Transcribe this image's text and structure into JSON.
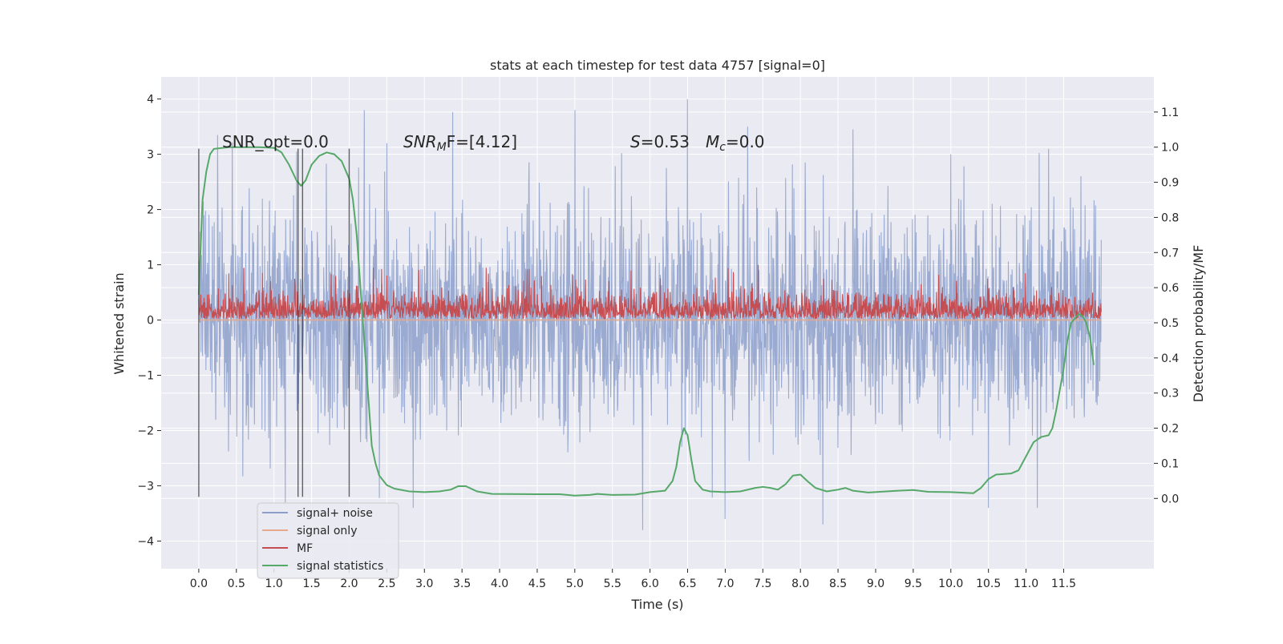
{
  "chart_data": {
    "type": "line",
    "title": "stats at each timestep for test data 4757 [signal=0]",
    "xlabel": "Time (s)",
    "ylabel_left": "Whitened strain",
    "ylabel_right": "Detection probability/MF",
    "xlim": [
      -0.5,
      12.7
    ],
    "ylim_left": [
      -4.5,
      4.4
    ],
    "ylim_right": [
      -0.2,
      1.2
    ],
    "x_ticks": [
      "0.0",
      "0.5",
      "1.0",
      "1.5",
      "2.0",
      "2.5",
      "3.0",
      "3.5",
      "4.0",
      "4.5",
      "5.0",
      "5.5",
      "6.0",
      "6.5",
      "7.0",
      "7.5",
      "8.0",
      "8.5",
      "9.0",
      "9.5",
      "10.0",
      "10.5",
      "11.0",
      "11.5"
    ],
    "y_ticks_left": [
      4,
      3,
      2,
      1,
      0,
      -1,
      -2,
      -3,
      -4
    ],
    "y_tick_labels_left": [
      "4",
      "3",
      "2",
      "1",
      "0",
      "−1",
      "−2",
      "−3",
      "−4"
    ],
    "y_ticks_right": [
      1.1,
      1.0,
      0.9,
      0.8,
      0.7,
      0.6,
      0.5,
      0.4,
      0.3,
      0.2,
      0.1,
      0.0
    ],
    "y_tick_labels_right": [
      "1.1",
      "1.0",
      "0.9",
      "0.8",
      "0.7",
      "0.6",
      "0.5",
      "0.4",
      "0.3",
      "0.2",
      "0.1",
      "0.0"
    ],
    "grid": true,
    "annotations": {
      "snr_opt": "SNR_opt=0.0",
      "snr_mf_prefix": "SNR",
      "snr_mf_sub": "M",
      "snr_mf_rest": "F=[4.12]",
      "s_var": "S",
      "s_rest": "=0.53",
      "mc_var": "M",
      "mc_sub": "c",
      "mc_rest": "=0.0"
    },
    "vertical_lines_x": [
      0.0,
      1.32,
      1.38,
      2.0
    ],
    "vertical_lines_range": [
      -3.2,
      3.1
    ],
    "legend": {
      "placement": "lower-left",
      "entries": [
        {
          "label": "signal+ noise",
          "color": "#8c9fca"
        },
        {
          "label": "signal only",
          "color": "#e6a98c"
        },
        {
          "label": "MF",
          "color": "#c44e52"
        },
        {
          "label": "signal statistics",
          "color": "#55a868"
        }
      ]
    },
    "series": [
      {
        "name": "signal+ noise",
        "axis": "left",
        "color": "#8c9fca",
        "x_range": [
          0.0,
          12.0
        ],
        "envelope_typical": [
          -2.0,
          2.0
        ],
        "extremes": [
          {
            "x": 0.25,
            "y": 3.35
          },
          {
            "x": 1.3,
            "y": 3.05
          },
          {
            "x": 2.2,
            "y": 3.8
          },
          {
            "x": 2.5,
            "y": 3.2
          },
          {
            "x": 5.0,
            "y": 3.8
          },
          {
            "x": 6.5,
            "y": 4.0
          },
          {
            "x": 7.3,
            "y": 3.5
          },
          {
            "x": 8.7,
            "y": 3.45
          },
          {
            "x": 10.0,
            "y": 3.0
          },
          {
            "x": 11.3,
            "y": 3.1
          },
          {
            "x": 5.9,
            "y": -3.8
          },
          {
            "x": 1.15,
            "y": -3.3
          },
          {
            "x": 2.85,
            "y": -3.4
          },
          {
            "x": 7.0,
            "y": -3.6
          },
          {
            "x": 8.3,
            "y": -3.7
          },
          {
            "x": 10.5,
            "y": -3.4
          },
          {
            "x": 11.15,
            "y": -3.4
          }
        ]
      },
      {
        "name": "signal only",
        "axis": "left",
        "color": "#e6a98c",
        "x_range": [
          0.0,
          12.0
        ],
        "value": 0.0
      },
      {
        "name": "MF",
        "axis": "left",
        "color": "#c44e52",
        "x_range": [
          0.0,
          12.0
        ],
        "envelope_typical": [
          0.0,
          0.7
        ],
        "max": 1.0
      },
      {
        "name": "signal statistics",
        "axis": "right",
        "color": "#55a868",
        "points": [
          [
            0.0,
            0.58
          ],
          [
            0.05,
            0.85
          ],
          [
            0.1,
            0.93
          ],
          [
            0.15,
            0.98
          ],
          [
            0.2,
            0.995
          ],
          [
            0.4,
            1.0
          ],
          [
            0.8,
            1.0
          ],
          [
            1.0,
            0.998
          ],
          [
            1.1,
            0.985
          ],
          [
            1.2,
            0.95
          ],
          [
            1.3,
            0.905
          ],
          [
            1.36,
            0.89
          ],
          [
            1.42,
            0.905
          ],
          [
            1.5,
            0.95
          ],
          [
            1.6,
            0.975
          ],
          [
            1.7,
            0.985
          ],
          [
            1.8,
            0.98
          ],
          [
            1.9,
            0.96
          ],
          [
            2.0,
            0.91
          ],
          [
            2.05,
            0.85
          ],
          [
            2.1,
            0.75
          ],
          [
            2.15,
            0.6
          ],
          [
            2.2,
            0.45
          ],
          [
            2.25,
            0.3
          ],
          [
            2.3,
            0.15
          ],
          [
            2.35,
            0.1
          ],
          [
            2.4,
            0.065
          ],
          [
            2.5,
            0.038
          ],
          [
            2.6,
            0.028
          ],
          [
            2.8,
            0.02
          ],
          [
            3.0,
            0.018
          ],
          [
            3.2,
            0.02
          ],
          [
            3.35,
            0.025
          ],
          [
            3.45,
            0.035
          ],
          [
            3.55,
            0.035
          ],
          [
            3.7,
            0.02
          ],
          [
            3.9,
            0.013
          ],
          [
            4.5,
            0.012
          ],
          [
            4.8,
            0.012
          ],
          [
            5.0,
            0.008
          ],
          [
            5.2,
            0.01
          ],
          [
            5.3,
            0.013
          ],
          [
            5.5,
            0.01
          ],
          [
            5.8,
            0.011
          ],
          [
            6.0,
            0.018
          ],
          [
            6.2,
            0.022
          ],
          [
            6.3,
            0.05
          ],
          [
            6.35,
            0.09
          ],
          [
            6.4,
            0.16
          ],
          [
            6.45,
            0.2
          ],
          [
            6.5,
            0.18
          ],
          [
            6.55,
            0.11
          ],
          [
            6.6,
            0.05
          ],
          [
            6.7,
            0.025
          ],
          [
            6.8,
            0.02
          ],
          [
            7.0,
            0.018
          ],
          [
            7.2,
            0.02
          ],
          [
            7.4,
            0.03
          ],
          [
            7.5,
            0.033
          ],
          [
            7.6,
            0.03
          ],
          [
            7.7,
            0.025
          ],
          [
            7.8,
            0.04
          ],
          [
            7.9,
            0.065
          ],
          [
            8.0,
            0.068
          ],
          [
            8.1,
            0.048
          ],
          [
            8.2,
            0.03
          ],
          [
            8.35,
            0.02
          ],
          [
            8.5,
            0.025
          ],
          [
            8.6,
            0.03
          ],
          [
            8.7,
            0.022
          ],
          [
            8.9,
            0.017
          ],
          [
            9.3,
            0.022
          ],
          [
            9.5,
            0.024
          ],
          [
            9.7,
            0.019
          ],
          [
            10.0,
            0.018
          ],
          [
            10.3,
            0.015
          ],
          [
            10.4,
            0.03
          ],
          [
            10.5,
            0.055
          ],
          [
            10.6,
            0.068
          ],
          [
            10.8,
            0.071
          ],
          [
            10.9,
            0.08
          ],
          [
            11.0,
            0.12
          ],
          [
            11.1,
            0.16
          ],
          [
            11.2,
            0.175
          ],
          [
            11.3,
            0.18
          ],
          [
            11.35,
            0.2
          ],
          [
            11.4,
            0.25
          ],
          [
            11.5,
            0.37
          ],
          [
            11.55,
            0.45
          ],
          [
            11.6,
            0.5
          ],
          [
            11.7,
            0.525
          ],
          [
            11.75,
            0.52
          ],
          [
            11.8,
            0.5
          ],
          [
            11.85,
            0.46
          ],
          [
            11.9,
            0.38
          ]
        ]
      }
    ]
  }
}
